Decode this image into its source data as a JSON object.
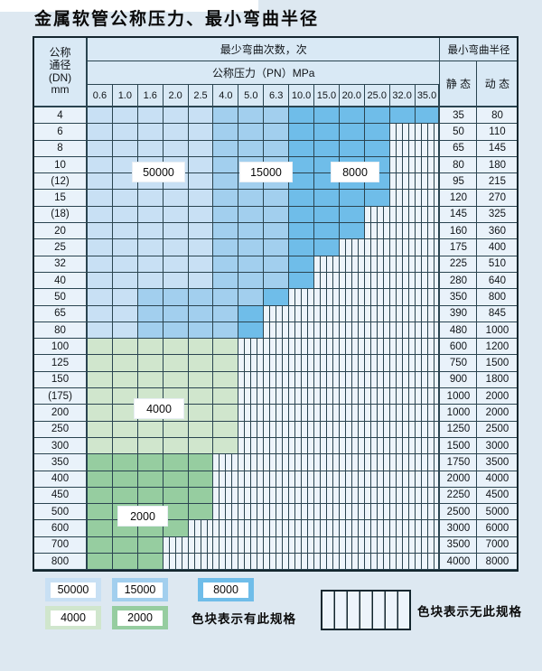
{
  "page": {
    "title": "金属软管公称压力、最小弯曲半径"
  },
  "colors": {
    "light_blue": "#c8e0f4",
    "medium_blue": "#a2cfee",
    "dark_blue": "#6fbde9",
    "light_green": "#d0e6cd",
    "medium_green": "#96cda0"
  },
  "table": {
    "header": {
      "dn_lines": [
        "公称",
        "通径",
        "(DN)",
        "mm"
      ],
      "bend_cycles": "最少弯曲次数，次",
      "pressure_title": "公称压力（PN）MPa",
      "min_radius": "最小弯曲半径",
      "static_label": "静 态",
      "dynamic_label": "动 态",
      "pressures": [
        "0.6",
        "1.0",
        "1.6",
        "2.0",
        "2.5",
        "4.0",
        "5.0",
        "6.3",
        "10.0",
        "15.0",
        "20.0",
        "25.0",
        "32.0",
        "35.0"
      ]
    },
    "shade_cycle_ratings": {
      "light": 50000,
      "medium": 15000,
      "dark": 8000,
      "glight": 4000,
      "gmed": 2000
    },
    "note": "segments = consecutive colored pressure columns per row, left to right; remaining columns are striped (spec not available)",
    "rows": [
      {
        "dn": "4",
        "static": "35",
        "dynamic": "80",
        "segments": [
          [
            "light",
            5
          ],
          [
            "medium",
            3
          ],
          [
            "dark",
            6
          ]
        ],
        "cycles": {
          "50000": "0.6-2.5",
          "15000": "4.0-6.3",
          "8000": "10.0-35.0"
        }
      },
      {
        "dn": "6",
        "static": "50",
        "dynamic": "110",
        "segments": [
          [
            "light",
            5
          ],
          [
            "medium",
            3
          ],
          [
            "dark",
            4
          ]
        ],
        "cycles": {
          "50000": "0.6-2.5",
          "15000": "4.0-6.3",
          "8000": "10.0-25.0"
        }
      },
      {
        "dn": "8",
        "static": "65",
        "dynamic": "145",
        "segments": [
          [
            "light",
            5
          ],
          [
            "medium",
            3
          ],
          [
            "dark",
            4
          ]
        ],
        "cycles": {
          "50000": "0.6-2.5",
          "15000": "4.0-6.3",
          "8000": "10.0-25.0"
        }
      },
      {
        "dn": "10",
        "static": "80",
        "dynamic": "180",
        "segments": [
          [
            "light",
            5
          ],
          [
            "medium",
            3
          ],
          [
            "dark",
            4
          ]
        ],
        "cycles": {
          "50000": "0.6-2.5",
          "15000": "4.0-6.3",
          "8000": "10.0-25.0"
        }
      },
      {
        "dn": "(12)",
        "static": "95",
        "dynamic": "215",
        "segments": [
          [
            "light",
            5
          ],
          [
            "medium",
            3
          ],
          [
            "dark",
            4
          ]
        ],
        "cycles": {
          "50000": "0.6-2.5",
          "15000": "4.0-6.3",
          "8000": "10.0-25.0"
        }
      },
      {
        "dn": "15",
        "static": "120",
        "dynamic": "270",
        "segments": [
          [
            "light",
            5
          ],
          [
            "medium",
            3
          ],
          [
            "dark",
            4
          ]
        ],
        "cycles": {
          "50000": "0.6-2.5",
          "15000": "4.0-6.3",
          "8000": "10.0-25.0"
        }
      },
      {
        "dn": "(18)",
        "static": "145",
        "dynamic": "325",
        "segments": [
          [
            "light",
            5
          ],
          [
            "medium",
            3
          ],
          [
            "dark",
            3
          ]
        ],
        "cycles": {
          "50000": "0.6-2.5",
          "15000": "4.0-6.3",
          "8000": "10.0-20.0"
        }
      },
      {
        "dn": "20",
        "static": "160",
        "dynamic": "360",
        "segments": [
          [
            "light",
            5
          ],
          [
            "medium",
            3
          ],
          [
            "dark",
            3
          ]
        ],
        "cycles": {
          "50000": "0.6-2.5",
          "15000": "4.0-6.3",
          "8000": "10.0-20.0"
        }
      },
      {
        "dn": "25",
        "static": "175",
        "dynamic": "400",
        "segments": [
          [
            "light",
            5
          ],
          [
            "medium",
            3
          ],
          [
            "dark",
            2
          ]
        ],
        "cycles": {
          "50000": "0.6-2.5",
          "15000": "4.0-6.3",
          "8000": "10.0-15.0"
        }
      },
      {
        "dn": "32",
        "static": "225",
        "dynamic": "510",
        "segments": [
          [
            "light",
            5
          ],
          [
            "medium",
            3
          ],
          [
            "dark",
            1
          ]
        ],
        "cycles": {
          "50000": "0.6-2.5",
          "15000": "4.0-6.3",
          "8000": "10.0"
        }
      },
      {
        "dn": "40",
        "static": "280",
        "dynamic": "640",
        "segments": [
          [
            "light",
            5
          ],
          [
            "medium",
            3
          ],
          [
            "dark",
            1
          ]
        ],
        "cycles": {
          "50000": "0.6-2.5",
          "15000": "4.0-6.3",
          "8000": "10.0"
        }
      },
      {
        "dn": "50",
        "static": "350",
        "dynamic": "800",
        "segments": [
          [
            "light",
            2
          ],
          [
            "medium",
            5
          ],
          [
            "dark",
            1
          ]
        ],
        "cycles": {
          "50000": "0.6-1.0",
          "15000": "1.6-5.0",
          "8000": "6.3"
        }
      },
      {
        "dn": "65",
        "static": "390",
        "dynamic": "845",
        "segments": [
          [
            "light",
            2
          ],
          [
            "medium",
            4
          ],
          [
            "dark",
            1
          ]
        ],
        "cycles": {
          "50000": "0.6-1.0",
          "15000": "1.6-4.0",
          "8000": "5.0"
        }
      },
      {
        "dn": "80",
        "static": "480",
        "dynamic": "1000",
        "segments": [
          [
            "light",
            2
          ],
          [
            "medium",
            4
          ],
          [
            "dark",
            1
          ]
        ],
        "cycles": {
          "50000": "0.6-1.0",
          "15000": "1.6-4.0",
          "8000": "5.0"
        }
      },
      {
        "dn": "100",
        "static": "600",
        "dynamic": "1200",
        "segments": [
          [
            "glight",
            6
          ]
        ],
        "cycles": {
          "4000": "0.6-4.0"
        }
      },
      {
        "dn": "125",
        "static": "750",
        "dynamic": "1500",
        "segments": [
          [
            "glight",
            6
          ]
        ],
        "cycles": {
          "4000": "0.6-4.0"
        }
      },
      {
        "dn": "150",
        "static": "900",
        "dynamic": "1800",
        "segments": [
          [
            "glight",
            6
          ]
        ],
        "cycles": {
          "4000": "0.6-4.0"
        }
      },
      {
        "dn": "(175)",
        "static": "1000",
        "dynamic": "2000",
        "segments": [
          [
            "glight",
            6
          ]
        ],
        "cycles": {
          "4000": "0.6-4.0"
        }
      },
      {
        "dn": "200",
        "static": "1000",
        "dynamic": "2000",
        "segments": [
          [
            "glight",
            6
          ]
        ],
        "cycles": {
          "4000": "0.6-4.0"
        }
      },
      {
        "dn": "250",
        "static": "1250",
        "dynamic": "2500",
        "segments": [
          [
            "glight",
            6
          ]
        ],
        "cycles": {
          "4000": "0.6-4.0"
        }
      },
      {
        "dn": "300",
        "static": "1500",
        "dynamic": "3000",
        "segments": [
          [
            "glight",
            6
          ]
        ],
        "cycles": {
          "4000": "0.6-4.0"
        }
      },
      {
        "dn": "350",
        "static": "1750",
        "dynamic": "3500",
        "segments": [
          [
            "gmed",
            5
          ]
        ],
        "cycles": {
          "2000": "0.6-2.5"
        }
      },
      {
        "dn": "400",
        "static": "2000",
        "dynamic": "4000",
        "segments": [
          [
            "gmed",
            5
          ]
        ],
        "cycles": {
          "2000": "0.6-2.5"
        }
      },
      {
        "dn": "450",
        "static": "2250",
        "dynamic": "4500",
        "segments": [
          [
            "gmed",
            5
          ]
        ],
        "cycles": {
          "2000": "0.6-2.5"
        }
      },
      {
        "dn": "500",
        "static": "2500",
        "dynamic": "5000",
        "segments": [
          [
            "gmed",
            5
          ]
        ],
        "cycles": {
          "2000": "0.6-2.5"
        }
      },
      {
        "dn": "600",
        "static": "3000",
        "dynamic": "6000",
        "segments": [
          [
            "gmed",
            4
          ]
        ],
        "cycles": {
          "2000": "0.6-2.0"
        }
      },
      {
        "dn": "700",
        "static": "3500",
        "dynamic": "7000",
        "segments": [
          [
            "gmed",
            3
          ]
        ],
        "cycles": {
          "2000": "0.6-1.6"
        }
      },
      {
        "dn": "800",
        "static": "4000",
        "dynamic": "8000",
        "segments": [
          [
            "gmed",
            3
          ]
        ],
        "cycles": {
          "2000": "0.6-1.6"
        }
      }
    ]
  },
  "overlays": {
    "r50000": "50000",
    "r15000": "15000",
    "r8000": "8000",
    "r4000": "4000",
    "r2000": "2000"
  },
  "legend": {
    "items": [
      {
        "label": "50000",
        "shade": "light"
      },
      {
        "label": "15000",
        "shade": "medium"
      },
      {
        "label": "8000",
        "shade": "dark"
      },
      {
        "label": "4000",
        "shade": "glight"
      },
      {
        "label": "2000",
        "shade": "gmed"
      }
    ],
    "has_spec_caption": "色块表示有此规格",
    "no_spec_caption": "色块表示无此规格"
  }
}
